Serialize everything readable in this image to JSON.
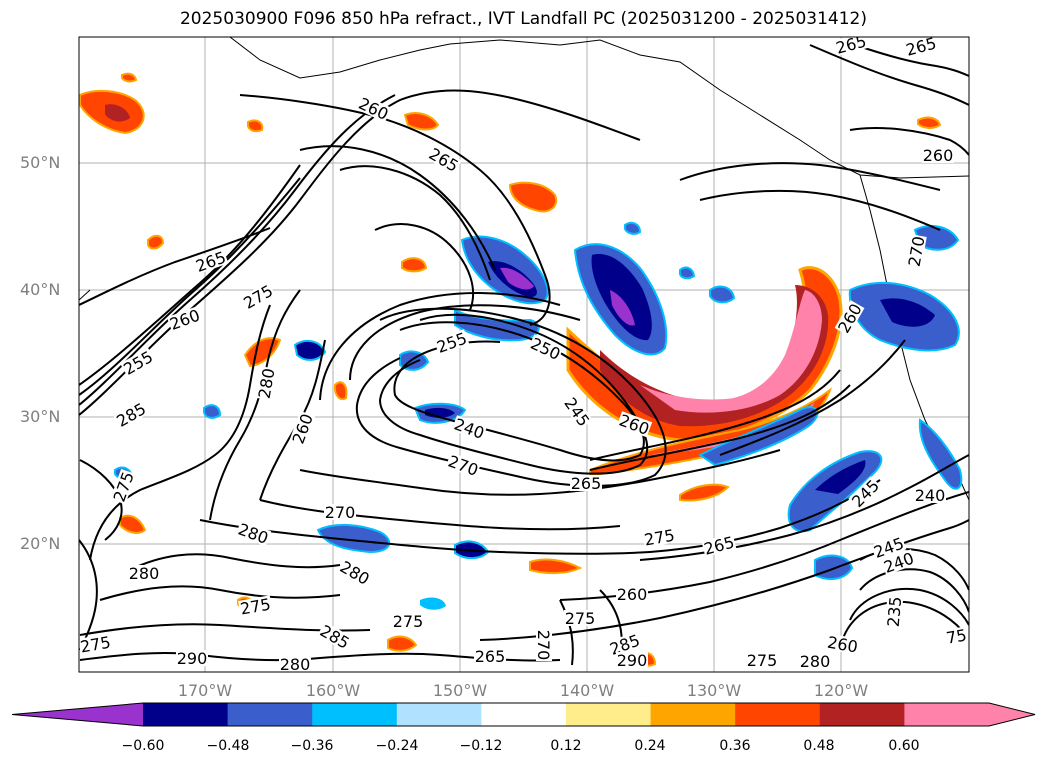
{
  "title": "2025030900 F096 850 hPa refract., IVT Landfall PC (2025031200 - 2025031412)",
  "lat_labels": [
    "50°N",
    "40°N",
    "30°N",
    "20°N"
  ],
  "lon_labels": [
    "170°W",
    "160°W",
    "150°W",
    "140°W",
    "130°W",
    "120°W"
  ],
  "colorbar": {
    "ticks": [
      "−0.60",
      "−0.48",
      "−0.36",
      "−0.24",
      "−0.12",
      "0.12",
      "0.24",
      "0.36",
      "0.48",
      "0.60"
    ],
    "colors": [
      "#9a32cd",
      "#00008b",
      "#3a5fcd",
      "#00bfff",
      "#b0e2ff",
      "#ffffff",
      "#ffec8b",
      "#ffa500",
      "#ff4500",
      "#b22222",
      "#ff82ab",
      "#ff82ab"
    ]
  },
  "contour_labels": [
    {
      "t": "265"
    },
    {
      "t": "265"
    },
    {
      "t": "260"
    },
    {
      "t": "265"
    },
    {
      "t": "260"
    },
    {
      "t": "265"
    },
    {
      "t": "275"
    },
    {
      "t": "260"
    },
    {
      "t": "255"
    },
    {
      "t": "285"
    },
    {
      "t": "280"
    },
    {
      "t": "255"
    },
    {
      "t": "250"
    },
    {
      "t": "245"
    },
    {
      "t": "240"
    },
    {
      "t": "260"
    },
    {
      "t": "270"
    },
    {
      "t": "265"
    },
    {
      "t": "260"
    },
    {
      "t": "275"
    },
    {
      "t": "270"
    },
    {
      "t": "280"
    },
    {
      "t": "280"
    },
    {
      "t": "280"
    },
    {
      "t": "275"
    },
    {
      "t": "275"
    },
    {
      "t": "285"
    },
    {
      "t": "290"
    },
    {
      "t": "280"
    },
    {
      "t": "275"
    },
    {
      "t": "265"
    },
    {
      "t": "260"
    },
    {
      "t": "275"
    },
    {
      "t": "265"
    },
    {
      "t": "245"
    },
    {
      "t": "240"
    },
    {
      "t": "245"
    },
    {
      "t": "240"
    },
    {
      "t": "235"
    },
    {
      "t": "260"
    },
    {
      "t": "280"
    },
    {
      "t": "275"
    },
    {
      "t": "285"
    },
    {
      "t": "290"
    },
    {
      "t": "270"
    },
    {
      "t": "260"
    },
    {
      "t": "275"
    },
    {
      "t": "75"
    },
    {
      "t": "270"
    }
  ]
}
